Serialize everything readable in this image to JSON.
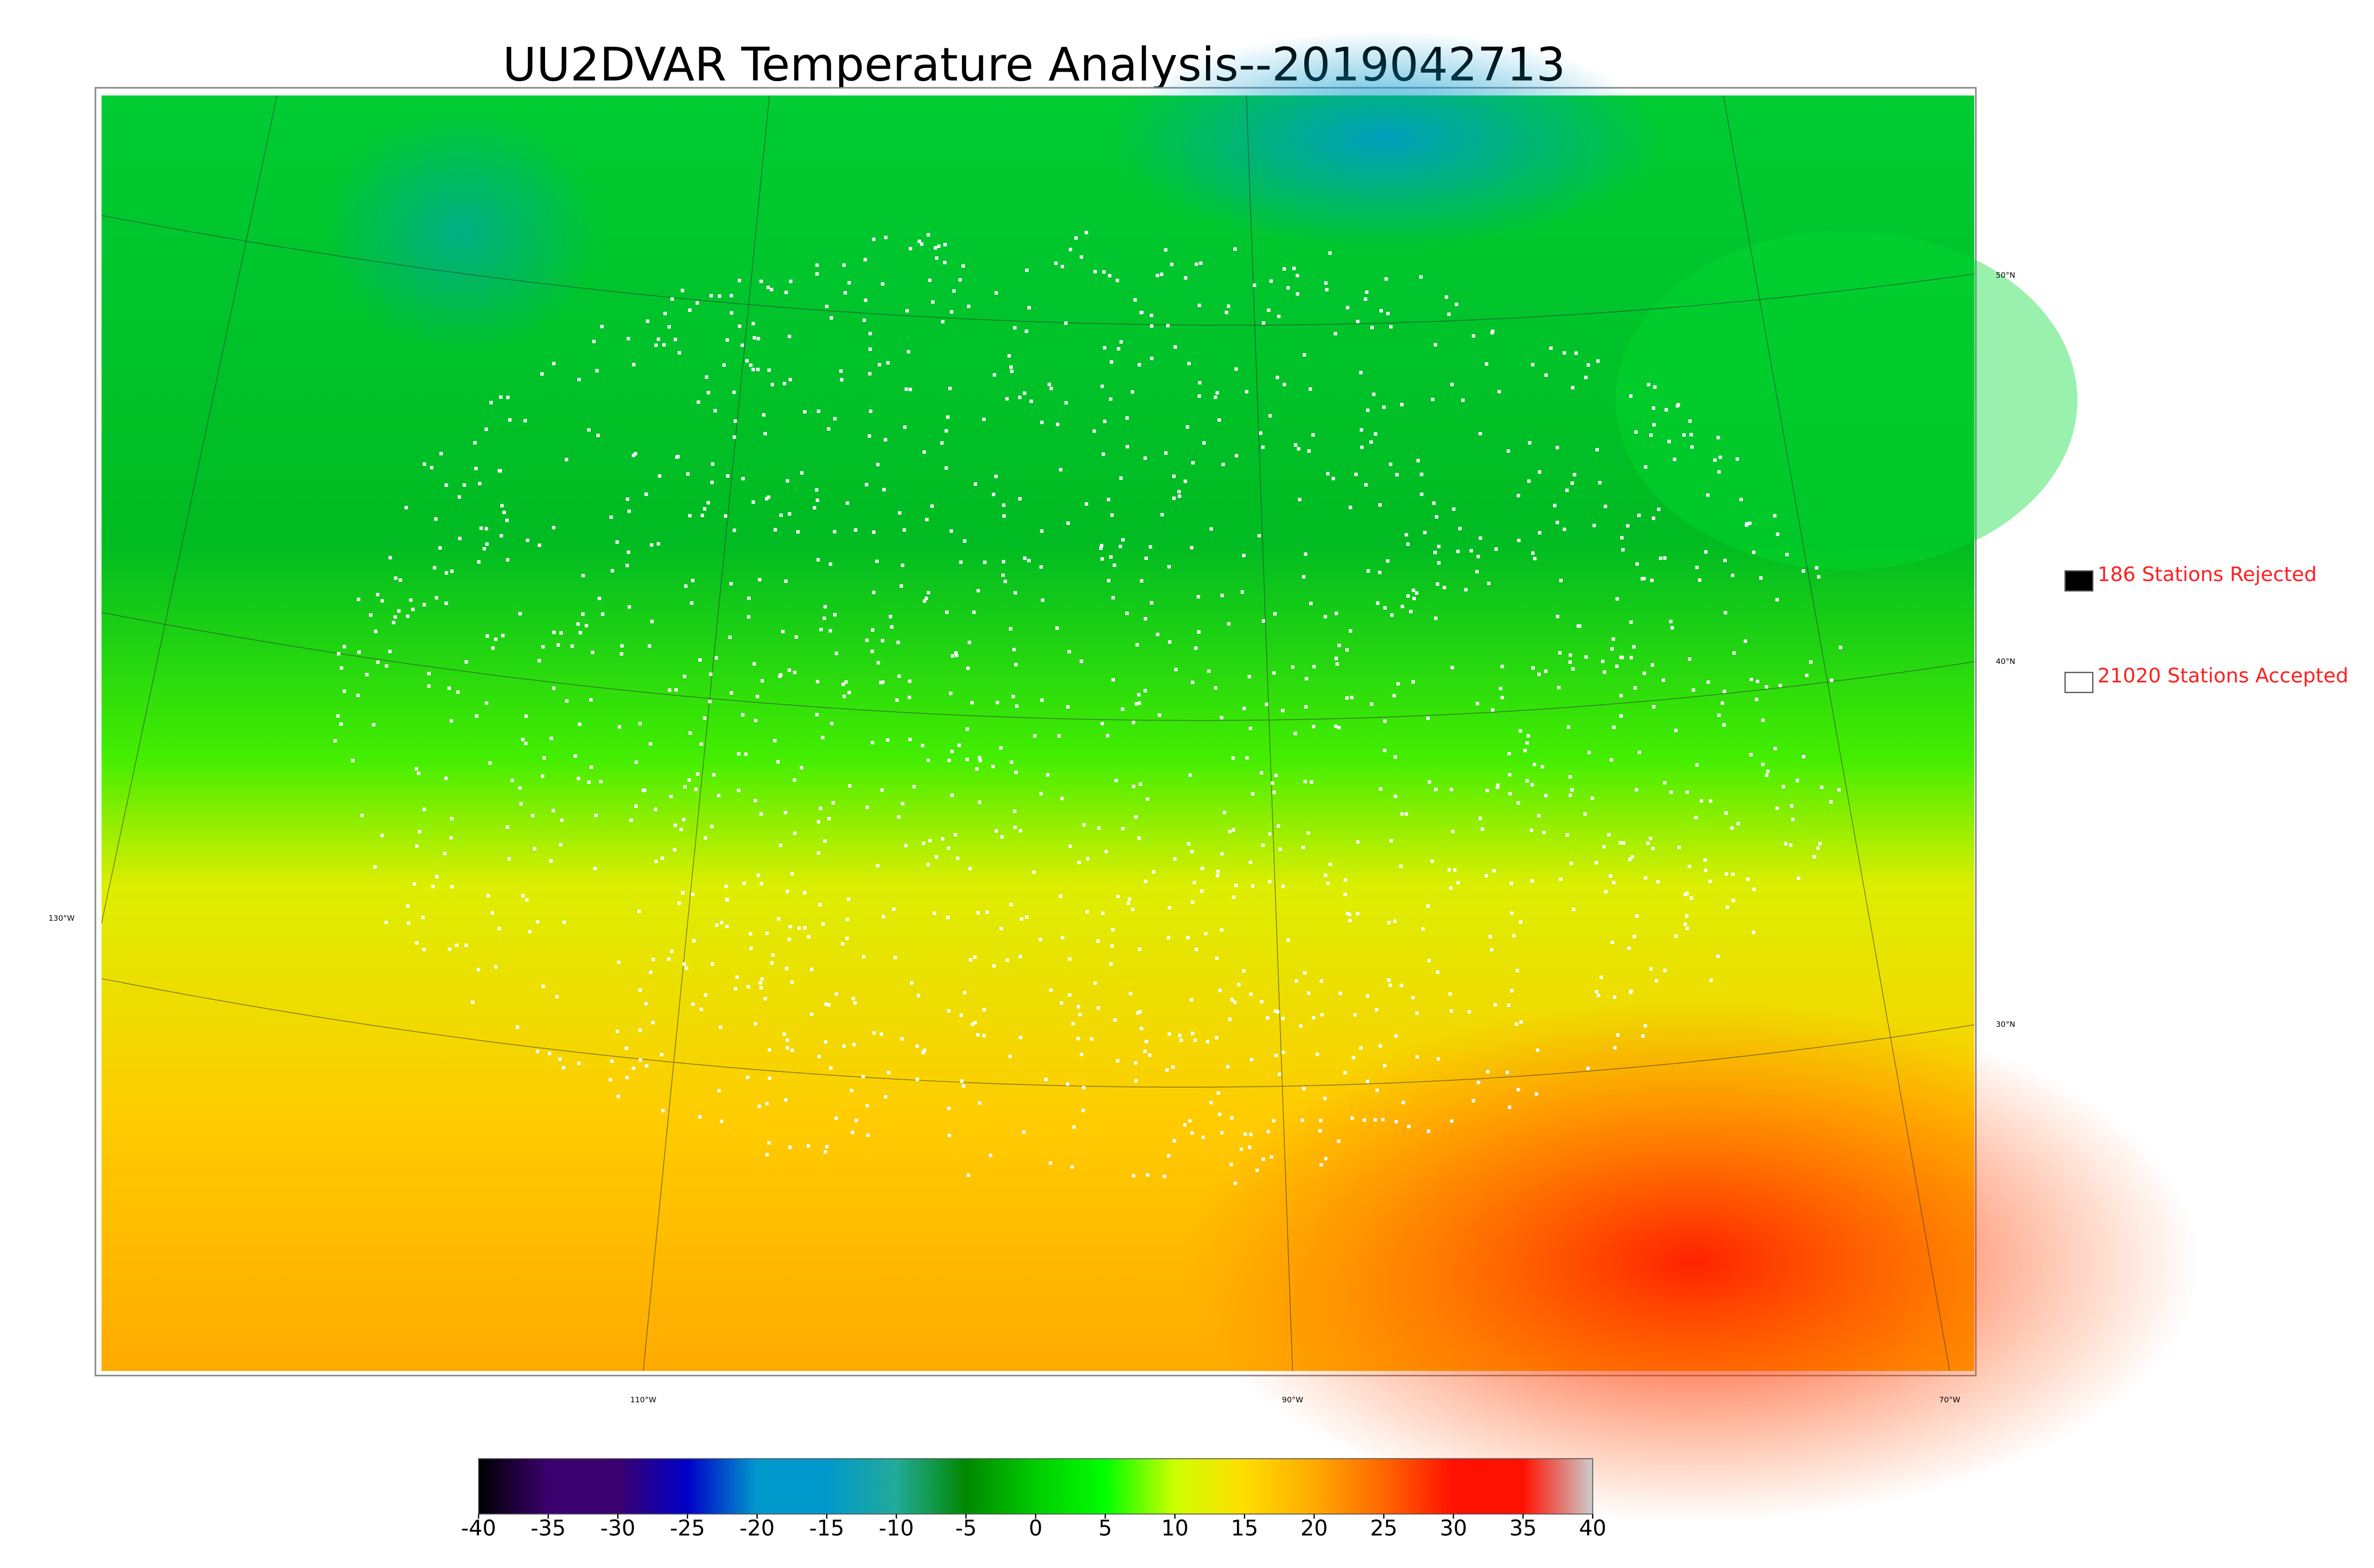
{
  "title": "UU2DVAR Temperature Analysis--2019042713",
  "legend": [
    {
      "label": "186 Stations Rejected",
      "color": "#000000"
    },
    {
      "label": "21020 Stations Accepted",
      "color": "#ffffff"
    }
  ],
  "colorbar": {
    "lim": [
      -40,
      40
    ],
    "ticks": [
      -40,
      -35,
      -30,
      -25,
      -20,
      -15,
      -10,
      -5,
      0,
      5,
      10,
      15,
      20,
      25,
      30,
      35,
      40
    ],
    "colors": [
      "#000000",
      "#3a006e",
      "#3a006e",
      "#0000c8",
      "#0099cc",
      "#0099cc",
      "#22aa99",
      "#008800",
      "#00cc00",
      "#00ff00",
      "#ccff00",
      "#ffdd00",
      "#ffaa00",
      "#ff6600",
      "#ff1100",
      "#ff1100",
      "#cccccc"
    ]
  },
  "graticule": {
    "lat_labels": [
      "50°N",
      "40°N",
      "30°N"
    ],
    "lon_labels": [
      "130°W",
      "110°W",
      "90°W",
      "70°W"
    ]
  }
}
